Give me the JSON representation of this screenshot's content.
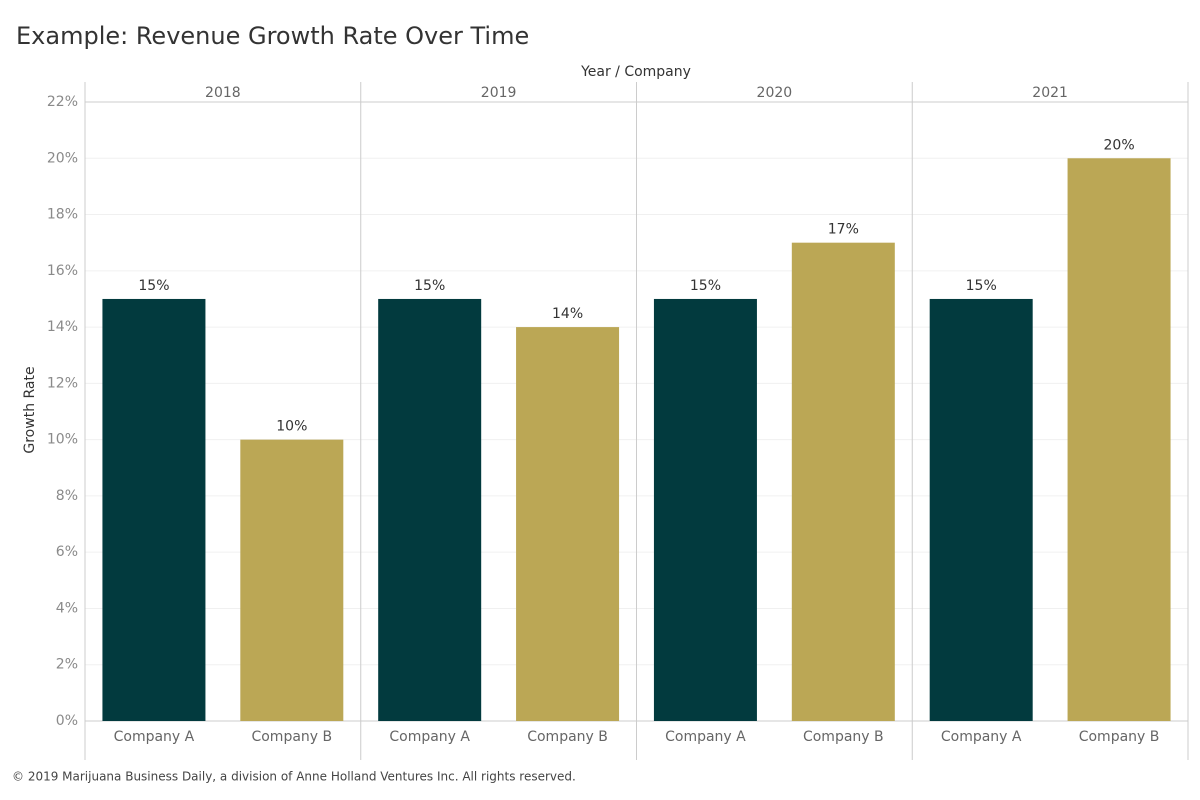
{
  "chart_data": {
    "type": "bar",
    "title": "Example: Revenue Growth Rate Over Time",
    "x_label": "Year / Company",
    "y_label": "Growth Rate",
    "groups": [
      "2018",
      "2019",
      "2020",
      "2021"
    ],
    "series": [
      {
        "name": "Company A",
        "color": "#023a3e",
        "values": [
          15,
          15,
          15,
          15
        ],
        "value_labels": [
          "15%",
          "15%",
          "15%",
          "15%"
        ]
      },
      {
        "name": "Company B",
        "color": "#bba755",
        "values": [
          10,
          14,
          17,
          20
        ],
        "value_labels": [
          "10%",
          "14%",
          "17%",
          "20%"
        ]
      }
    ],
    "ylim": [
      0,
      22
    ],
    "yticks": [
      {
        "value": 0,
        "label": "0%"
      },
      {
        "value": 2,
        "label": "2%"
      },
      {
        "value": 4,
        "label": "4%"
      },
      {
        "value": 6,
        "label": "6%"
      },
      {
        "value": 8,
        "label": "8%"
      },
      {
        "value": 10,
        "label": "10%"
      },
      {
        "value": 12,
        "label": "12%"
      },
      {
        "value": 14,
        "label": "14%"
      },
      {
        "value": 16,
        "label": "16%"
      },
      {
        "value": 18,
        "label": "18%"
      },
      {
        "value": 20,
        "label": "20%"
      },
      {
        "value": 22,
        "label": "22%"
      }
    ],
    "grid": true,
    "footer": "© 2019 Marijuana Business Daily, a division of Anne Holland Ventures Inc. All rights reserved."
  }
}
